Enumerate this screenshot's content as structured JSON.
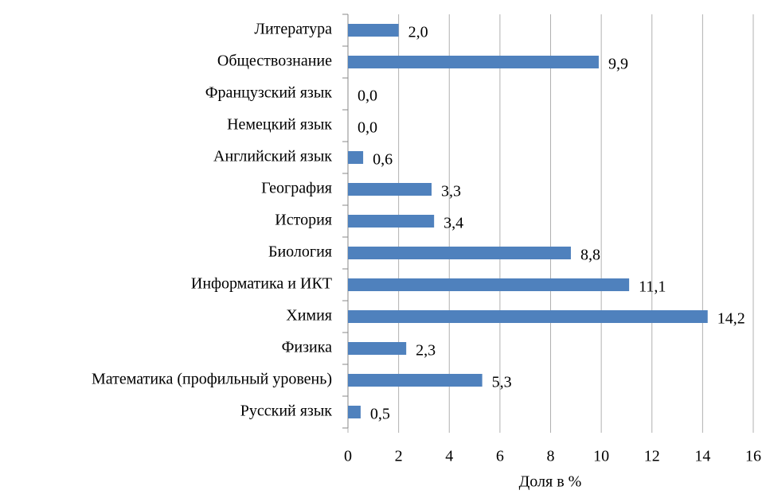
{
  "chart_data": {
    "type": "bar",
    "orientation": "horizontal",
    "x_label": "Доля в %",
    "categories": [
      "Литература",
      "Обществознание",
      "Французский язык",
      "Немецкий язык",
      "Английский язык",
      "География",
      "История",
      "Биология",
      "Информатика и ИКТ",
      "Химия",
      "Физика",
      "Математика (профильный уровень)",
      "Русский язык"
    ],
    "values": [
      2.0,
      9.9,
      0.0,
      0.0,
      0.6,
      3.3,
      3.4,
      8.8,
      11.1,
      14.2,
      2.3,
      5.3,
      0.5
    ],
    "value_labels": [
      "2,0",
      "9,9",
      "0,0",
      "0,0",
      "0,6",
      "3,3",
      "3,4",
      "8,8",
      "11,1",
      "14,2",
      "2,3",
      "5,3",
      "0,5"
    ],
    "color": "#4f81bd",
    "xlim": [
      0,
      16
    ],
    "xticks": [
      0,
      2,
      4,
      6,
      8,
      10,
      12,
      14,
      16
    ],
    "grid": true
  }
}
